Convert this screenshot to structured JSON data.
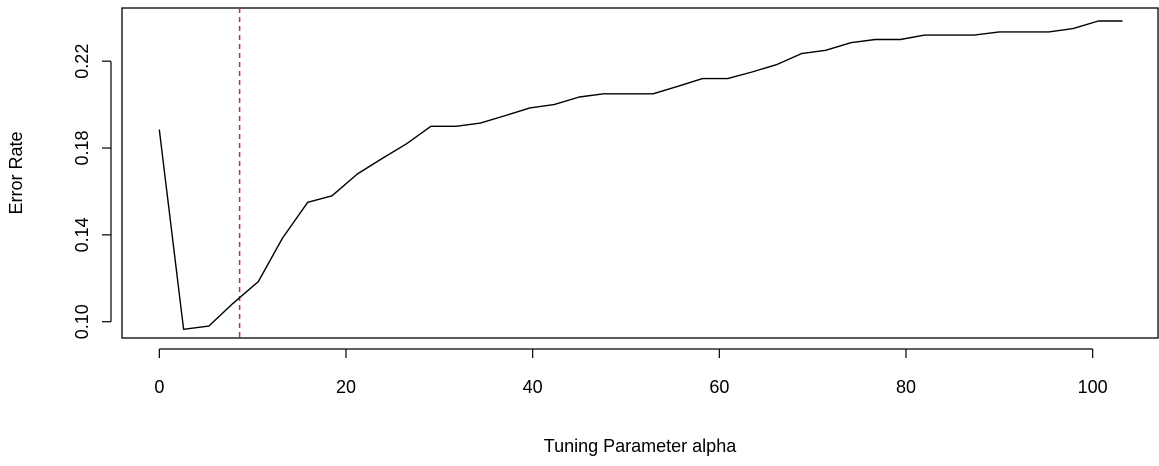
{
  "chart_data": {
    "type": "line",
    "title": "",
    "xlabel": "Tuning Parameter alpha",
    "ylabel": "Error Rate",
    "xlim": [
      -4,
      107
    ],
    "ylim": [
      0.0925,
      0.2445
    ],
    "x_ticks": [
      0,
      20,
      40,
      60,
      80,
      100
    ],
    "x_tick_labels": [
      "0",
      "20",
      "40",
      "60",
      "80",
      "100"
    ],
    "y_ticks": [
      0.1,
      0.14,
      0.18,
      0.22
    ],
    "y_tick_labels": [
      "0.10",
      "0.14",
      "0.18",
      "0.22"
    ],
    "grid": false,
    "series": [
      {
        "color": "#000000",
        "x": [
          0,
          2.6,
          5.3,
          7.9,
          10.6,
          13.2,
          15.9,
          18.5,
          21.2,
          23.8,
          26.5,
          29.1,
          31.8,
          34.4,
          37.1,
          39.7,
          42.3,
          45.0,
          47.6,
          50.3,
          52.9,
          55.6,
          58.2,
          60.9,
          63.5,
          66.2,
          68.8,
          71.4,
          74.1,
          76.7,
          79.4,
          82.0,
          84.7,
          87.3,
          90.0,
          92.6,
          95.3,
          97.9,
          100.6,
          103.2
        ],
        "y": [
          0.1885,
          0.0965,
          0.098,
          0.1085,
          0.1185,
          0.1385,
          0.155,
          0.158,
          0.168,
          0.175,
          0.182,
          0.19,
          0.19,
          0.1915,
          0.195,
          0.1985,
          0.2,
          0.2035,
          0.205,
          0.205,
          0.205,
          0.2085,
          0.212,
          0.212,
          0.215,
          0.2185,
          0.2235,
          0.225,
          0.2285,
          0.23,
          0.23,
          0.232,
          0.232,
          0.232,
          0.2335,
          0.2335,
          0.2335,
          0.235,
          0.2385,
          0.2385
        ]
      }
    ],
    "vline": {
      "x": 8.6,
      "color": "#d62728",
      "style": "dashed"
    }
  }
}
